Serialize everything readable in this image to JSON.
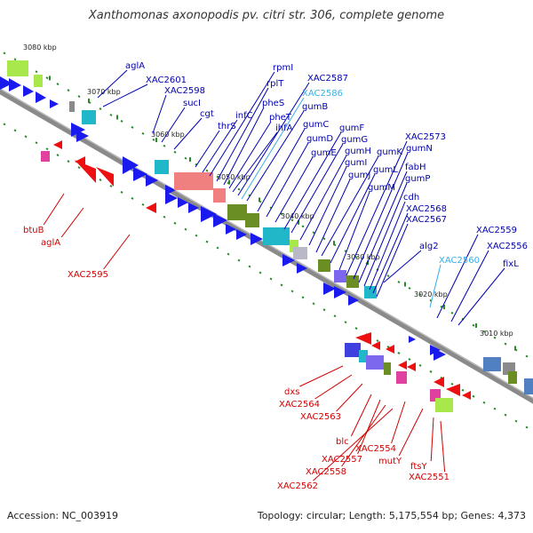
{
  "title": "Xanthomonas axonopodis pv. citri str. 306, complete genome",
  "footer": {
    "accession": "Accession: NC_003919",
    "summary": "Topology: circular; Length: 5,175,554 bp; Genes: 4,373"
  },
  "colors": {
    "backbone": "#8c8c8c",
    "forward_gene": "#1010e0",
    "reverse_gene": "#e00000",
    "forward_label": "#0000b0",
    "reverse_label": "#d00000",
    "highlight_label": "#3aaee8",
    "tick": "#2a8a2a"
  },
  "scale_labels": [
    "3080 kbp",
    "3070 kbp",
    "3060 kbp",
    "3050 kbp",
    "3040 kbp",
    "3030 kbp",
    "3020 kbp",
    "3010 kbp"
  ],
  "forward_labels": [
    {
      "text": "aglA",
      "highlight": false
    },
    {
      "text": "XAC2601",
      "highlight": false
    },
    {
      "text": "XAC2598",
      "highlight": false
    },
    {
      "text": "sucI",
      "highlight": false
    },
    {
      "text": "cgt",
      "highlight": false
    },
    {
      "text": "thrS",
      "highlight": false
    },
    {
      "text": "infC",
      "highlight": false
    },
    {
      "text": "rpmI",
      "highlight": false
    },
    {
      "text": "rplT",
      "highlight": false
    },
    {
      "text": "pheS",
      "highlight": false
    },
    {
      "text": "pheT",
      "highlight": false
    },
    {
      "text": "ihfA",
      "highlight": false
    },
    {
      "text": "XAC2587",
      "highlight": false
    },
    {
      "text": "XAC2586",
      "highlight": true
    },
    {
      "text": "gumB",
      "highlight": false
    },
    {
      "text": "gumC",
      "highlight": false
    },
    {
      "text": "gumD",
      "highlight": false
    },
    {
      "text": "gumE",
      "highlight": false
    },
    {
      "text": "gumF",
      "highlight": false
    },
    {
      "text": "gumG",
      "highlight": false
    },
    {
      "text": "gumH",
      "highlight": false
    },
    {
      "text": "gumI",
      "highlight": false
    },
    {
      "text": "gumJ",
      "highlight": false
    },
    {
      "text": "gumK",
      "highlight": false
    },
    {
      "text": "gumL",
      "highlight": false
    },
    {
      "text": "gumM",
      "highlight": false
    },
    {
      "text": "XAC2573",
      "highlight": false
    },
    {
      "text": "gumN",
      "highlight": false
    },
    {
      "text": "fabH",
      "highlight": false
    },
    {
      "text": "gumP",
      "highlight": false
    },
    {
      "text": "cdh",
      "highlight": false
    },
    {
      "text": "XAC2568",
      "highlight": false
    },
    {
      "text": "XAC2567",
      "highlight": false
    },
    {
      "text": "alg2",
      "highlight": false
    },
    {
      "text": "XAC2560",
      "highlight": true
    },
    {
      "text": "XAC2559",
      "highlight": false
    },
    {
      "text": "XAC2556",
      "highlight": false
    },
    {
      "text": "fixL",
      "highlight": false
    }
  ],
  "reverse_labels": [
    {
      "text": "btuB"
    },
    {
      "text": "aglA"
    },
    {
      "text": "XAC2595"
    },
    {
      "text": "dxs"
    },
    {
      "text": "XAC2564"
    },
    {
      "text": "XAC2563"
    },
    {
      "text": "blc"
    },
    {
      "text": "XAC2557"
    },
    {
      "text": "XAC2558"
    },
    {
      "text": "XAC2562"
    },
    {
      "text": "XAC2554"
    },
    {
      "text": "mutY"
    },
    {
      "text": "ftsY"
    },
    {
      "text": "XAC2551"
    }
  ]
}
